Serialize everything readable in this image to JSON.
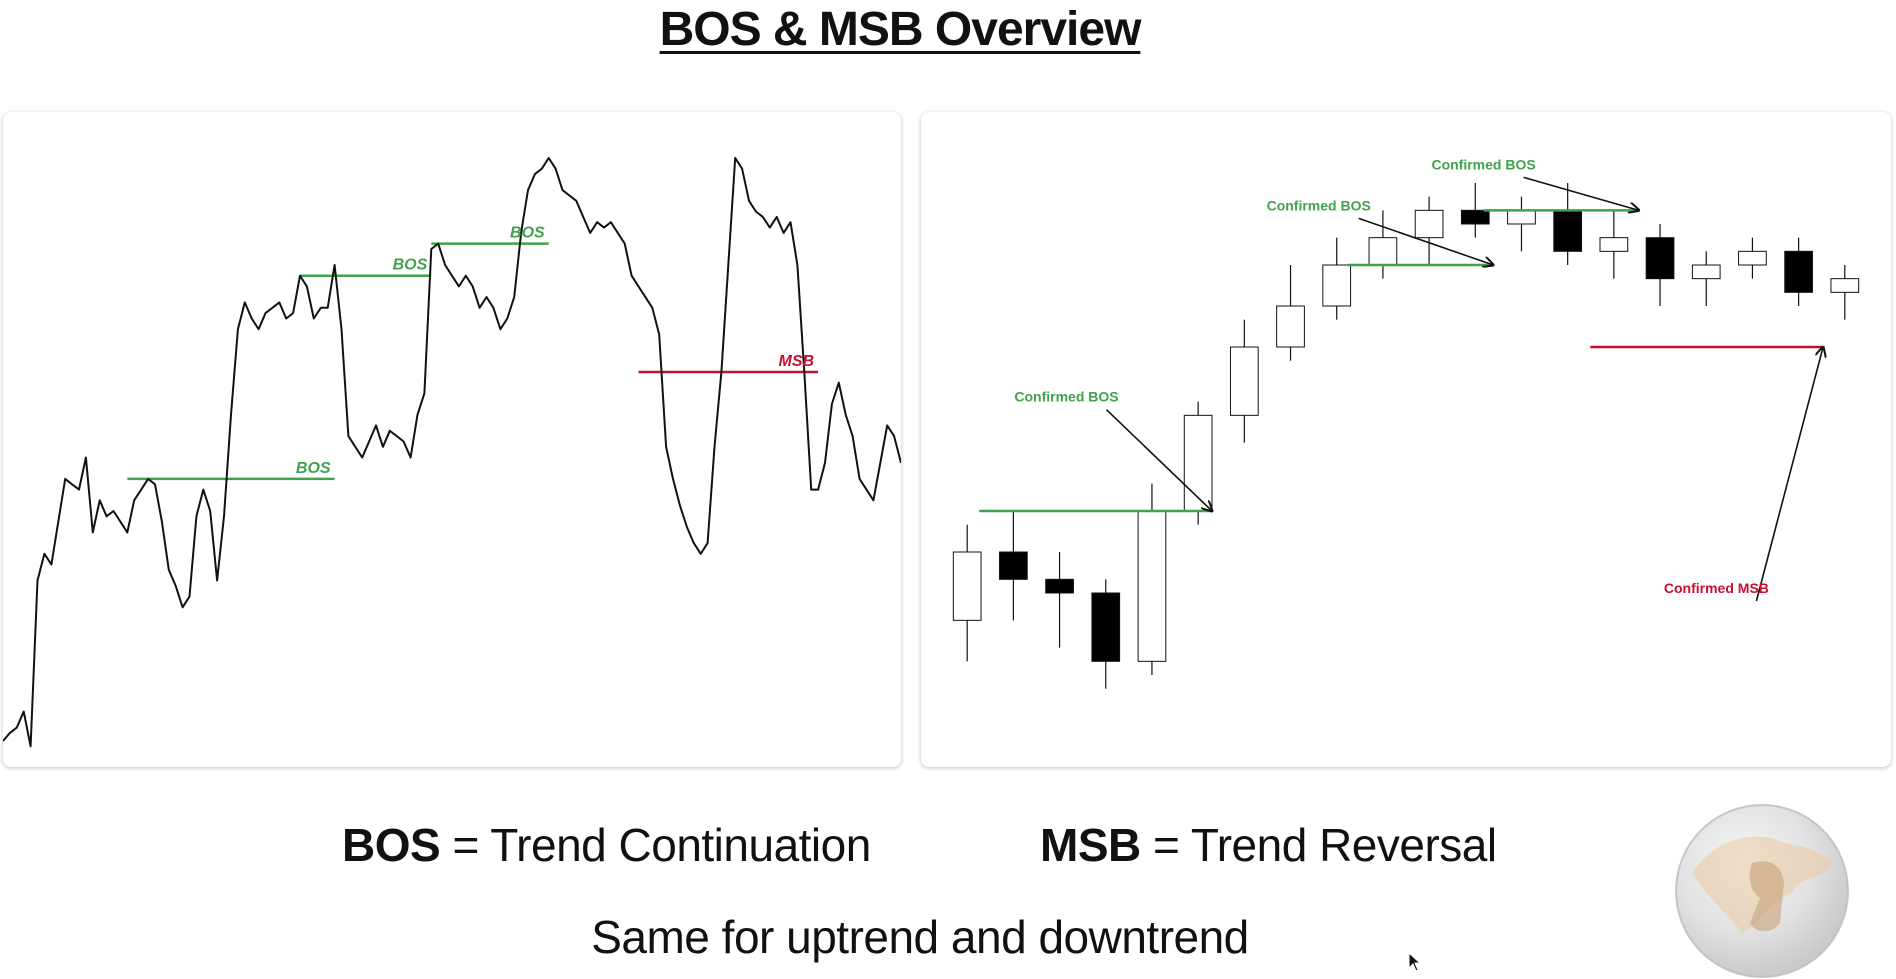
{
  "title": "BOS & MSB Overview",
  "left_chart": {
    "labels": {
      "bos": "BOS",
      "msb": "MSB"
    }
  },
  "right_chart": {
    "labels": {
      "confirmed_bos": "Confirmed BOS",
      "confirmed_msb": "Confirmed MSB"
    }
  },
  "captions": {
    "bos_term": "BOS",
    "bos_def": "= Trend Continuation",
    "msb_term": "MSB",
    "msb_def": "= Trend Reversal",
    "footer": "Same for uptrend and downtrend"
  },
  "colors": {
    "bos": "#3fa34d",
    "msb": "#c8102e",
    "line": "#111111",
    "bear": "#000000",
    "bull": "#ffffff"
  },
  "chart_data": [
    {
      "type": "line",
      "series": [
        {
          "values": [
            0.03,
            0.045,
            0.055,
            0.085,
            0.02,
            0.33,
            0.38,
            0.36,
            0.44,
            0.52,
            0.51,
            0.5,
            0.56,
            0.42,
            0.48,
            0.45,
            0.46,
            0.44,
            0.42,
            0.48,
            0.5,
            0.52,
            0.51,
            0.44,
            0.35,
            0.32,
            0.28,
            0.3,
            0.45,
            0.5,
            0.46,
            0.33,
            0.45,
            0.64,
            0.8,
            0.85,
            0.82,
            0.8,
            0.83,
            0.84,
            0.85,
            0.82,
            0.83,
            0.9,
            0.88,
            0.82,
            0.84,
            0.84,
            0.92,
            0.8,
            0.6,
            0.58,
            0.56,
            0.59,
            0.62,
            0.58,
            0.61,
            0.6,
            0.59,
            0.56,
            0.64,
            0.68,
            0.95,
            0.96,
            0.92,
            0.9,
            0.88,
            0.9,
            0.88,
            0.84,
            0.86,
            0.84,
            0.8,
            0.82,
            0.86,
            0.98,
            1.06,
            1.09,
            1.1,
            1.12,
            1.1,
            1.06,
            1.05,
            1.04,
            1.01,
            0.98,
            1.0,
            0.99,
            1.0,
            0.98,
            0.96,
            0.9,
            0.88,
            0.86,
            0.84,
            0.79,
            0.58,
            0.52,
            0.47,
            0.43,
            0.4,
            0.38,
            0.4,
            0.58,
            0.72,
            0.92,
            1.12,
            1.1,
            1.04,
            1.02,
            1.01,
            0.99,
            1.01,
            0.98,
            1.0,
            0.92,
            0.72,
            0.5,
            0.5,
            0.55,
            0.66,
            0.7,
            0.64,
            0.6,
            0.52,
            0.5,
            0.48,
            0.55,
            0.62,
            0.6,
            0.55
          ]
        }
      ],
      "levels": [
        {
          "label": "BOS",
          "value": 0.52,
          "from_index": 18,
          "to_index": 48,
          "kind": "bos"
        },
        {
          "label": "BOS",
          "value": 0.9,
          "from_index": 43,
          "to_index": 62,
          "kind": "bos"
        },
        {
          "label": "BOS",
          "value": 0.96,
          "from_index": 62,
          "to_index": 79,
          "kind": "bos"
        },
        {
          "label": "MSB",
          "value": 0.72,
          "from_index": 92,
          "to_index": 118,
          "kind": "msb"
        }
      ]
    },
    {
      "type": "candlestick",
      "candles": [
        [
          0.5,
          0.55,
          0.57,
          0.47
        ],
        [
          0.55,
          0.53,
          0.58,
          0.5
        ],
        [
          0.53,
          0.52,
          0.55,
          0.48
        ],
        [
          0.52,
          0.47,
          0.53,
          0.45
        ],
        [
          0.47,
          0.58,
          0.6,
          0.46
        ],
        [
          0.58,
          0.65,
          0.66,
          0.57
        ],
        [
          0.65,
          0.7,
          0.72,
          0.63
        ],
        [
          0.7,
          0.73,
          0.76,
          0.69
        ],
        [
          0.73,
          0.76,
          0.78,
          0.72
        ],
        [
          0.76,
          0.78,
          0.8,
          0.75
        ],
        [
          0.78,
          0.8,
          0.81,
          0.76
        ],
        [
          0.8,
          0.79,
          0.82,
          0.78
        ],
        [
          0.79,
          0.8,
          0.81,
          0.77
        ],
        [
          0.8,
          0.77,
          0.82,
          0.76
        ],
        [
          0.77,
          0.78,
          0.8,
          0.75
        ],
        [
          0.78,
          0.75,
          0.79,
          0.73
        ],
        [
          0.75,
          0.76,
          0.77,
          0.73
        ],
        [
          0.76,
          0.77,
          0.78,
          0.75
        ],
        [
          0.77,
          0.74,
          0.78,
          0.73
        ],
        [
          0.74,
          0.75,
          0.76,
          0.72
        ]
      ],
      "levels": [
        {
          "label": "Confirmed BOS",
          "kind": "bos"
        },
        {
          "label": "Confirmed BOS",
          "kind": "bos"
        },
        {
          "label": "Confirmed BOS",
          "kind": "bos"
        },
        {
          "label": "Confirmed MSB",
          "kind": "msb"
        }
      ]
    }
  ]
}
